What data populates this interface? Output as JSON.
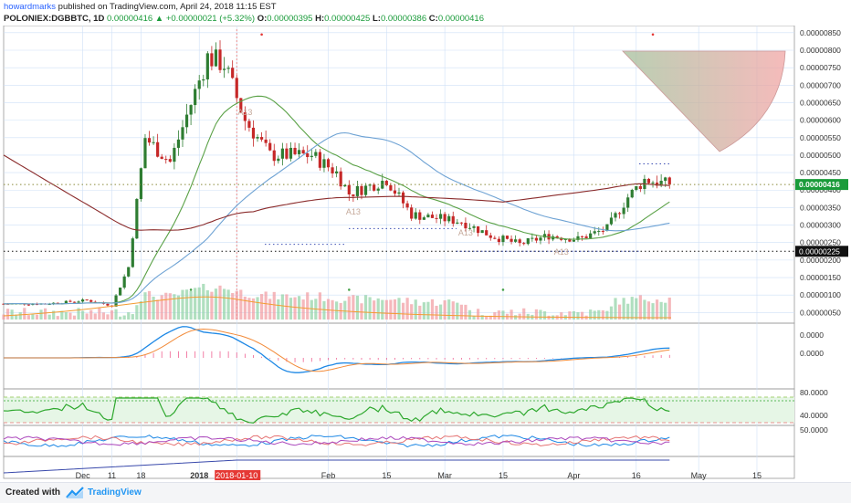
{
  "header": {
    "author": "howardmarks",
    "published_text": "published on TradingView.com, April 24, 2018 11:15 EST",
    "symbol": "POLONIEX:DGBBTC, 1D",
    "last": "0.00000416",
    "change_arrow": "▲",
    "change": "+0.00000021 (+5.32%)",
    "o_label": "O:",
    "o_value": "0.00000395",
    "h_label": "H:",
    "h_value": "0.00000425",
    "l_label": "L:",
    "l_value": "0.00000386",
    "c_label": "C:",
    "c_value": "0.00000416"
  },
  "footer": {
    "created_with": "Created with",
    "brand": "TradingView"
  },
  "colors": {
    "up_candle": "#2e7d32",
    "down_candle": "#c62828",
    "sma_fast": "#5aa146",
    "sma_mid": "#6fa3d4",
    "sma_slow": "#8b2c2c",
    "grid": "#cfe0f7",
    "macd": "#1e88e5",
    "macd_signal": "#f28b3a",
    "rsi": "#2ea82e",
    "price_tag": "#1a9b3a",
    "support_tag": "#111111"
  },
  "chart_data": {
    "type": "candlestick",
    "title": "POLONIEX:DGBBTC, 1D",
    "price_axis": {
      "ticks": [
        "0.00000850",
        "0.00000800",
        "0.00000750",
        "0.00000700",
        "0.00000650",
        "0.00000600",
        "0.00000550",
        "0.00000500",
        "0.00000450",
        "0.00000400",
        "0.00000350",
        "0.00000300",
        "0.00000250",
        "0.00000200",
        "0.00000150",
        "0.00000100",
        "0.00000050"
      ],
      "range": [
        3e-07,
        8.6e-06
      ],
      "current_price_label": "0.00000416",
      "support_label": "0.00000225"
    },
    "time_axis": {
      "labels": [
        "Dec",
        "11",
        "18",
        "2018",
        "2018-01-10",
        "Feb",
        "15",
        "Mar",
        "15",
        "Apr",
        "16",
        "May",
        "15"
      ],
      "highlight": "2018-01-10"
    },
    "candles": [
      {
        "date": "2017-11-25",
        "close": 7.5e-07
      },
      {
        "date": "2017-12-05",
        "close": 8.5e-07
      },
      {
        "date": "2017-12-11",
        "close": 7e-07
      },
      {
        "date": "2017-12-15",
        "close": 1.8e-06
      },
      {
        "date": "2017-12-19",
        "close": 5.5e-06
      },
      {
        "date": "2017-12-25",
        "close": 4.8e-06
      },
      {
        "date": "2018-01-03",
        "close": 7.8e-06
      },
      {
        "date": "2018-01-07",
        "close": 7.6e-06
      },
      {
        "date": "2018-01-12",
        "close": 6e-06
      },
      {
        "date": "2018-01-18",
        "close": 5e-06
      },
      {
        "date": "2018-01-28",
        "close": 5e-06
      },
      {
        "date": "2018-02-03",
        "close": 4.5e-06
      },
      {
        "date": "2018-02-06",
        "close": 3.9e-06
      },
      {
        "date": "2018-02-15",
        "close": 4.3e-06
      },
      {
        "date": "2018-02-21",
        "close": 3.3e-06
      },
      {
        "date": "2018-03-05",
        "close": 3.1e-06
      },
      {
        "date": "2018-03-12",
        "close": 2.7e-06
      },
      {
        "date": "2018-03-19",
        "close": 2.45e-06
      },
      {
        "date": "2018-03-26",
        "close": 2.7e-06
      },
      {
        "date": "2018-04-02",
        "close": 2.6e-06
      },
      {
        "date": "2018-04-09",
        "close": 2.9e-06
      },
      {
        "date": "2018-04-14",
        "close": 3.8e-06
      },
      {
        "date": "2018-04-18",
        "close": 4.3e-06
      },
      {
        "date": "2018-04-24",
        "close": 4.16e-06
      }
    ],
    "annotations": [
      "A13",
      "A13",
      "A13",
      "A13"
    ],
    "macd_axis": [
      "0.0000",
      "0.0000"
    ],
    "rsi_axis": [
      "80.0000",
      "40.0000"
    ],
    "adx_axis": [
      "50.0000"
    ],
    "legend": "none",
    "grid": true
  }
}
